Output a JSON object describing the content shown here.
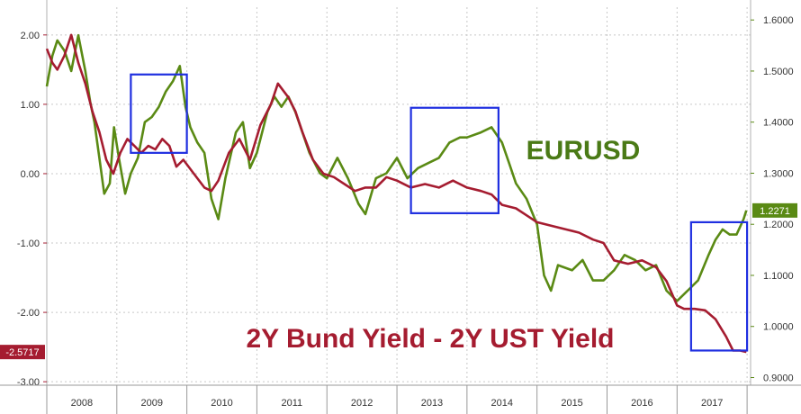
{
  "chart_data": {
    "type": "line",
    "x_years": [
      "2008",
      "2009",
      "2010",
      "2011",
      "2012",
      "2013",
      "2014",
      "2015",
      "2016",
      "2017"
    ],
    "left_axis": {
      "ticks": [
        "2.00",
        "1.00",
        "0.00",
        "-1.00",
        "-2.00",
        "-3.00"
      ],
      "tick_values": [
        2,
        1,
        0,
        -1,
        -2,
        -3
      ],
      "range": [
        -3.05,
        2.4
      ]
    },
    "right_axis": {
      "ticks": [
        "1.6000",
        "1.5000",
        "1.4000",
        "1.3000",
        "1.2000",
        "1.1000",
        "1.0000",
        "0.9000"
      ],
      "tick_values": [
        1.6,
        1.5,
        1.4,
        1.3,
        1.2,
        1.1,
        1.0,
        0.9
      ],
      "range": [
        0.885,
        1.625
      ]
    },
    "series": [
      {
        "name": "EURUSD",
        "axis": "right",
        "color": "#5a8a14",
        "last_value_label": "1.2271",
        "points": [
          [
            2008.0,
            1.47
          ],
          [
            2008.08,
            1.53
          ],
          [
            2008.15,
            1.56
          ],
          [
            2008.25,
            1.54
          ],
          [
            2008.35,
            1.5
          ],
          [
            2008.45,
            1.57
          ],
          [
            2008.55,
            1.5
          ],
          [
            2008.62,
            1.44
          ],
          [
            2008.68,
            1.4
          ],
          [
            2008.75,
            1.33
          ],
          [
            2008.82,
            1.26
          ],
          [
            2008.9,
            1.28
          ],
          [
            2008.96,
            1.39
          ],
          [
            2009.03,
            1.33
          ],
          [
            2009.12,
            1.26
          ],
          [
            2009.2,
            1.3
          ],
          [
            2009.3,
            1.33
          ],
          [
            2009.4,
            1.4
          ],
          [
            2009.5,
            1.41
          ],
          [
            2009.6,
            1.43
          ],
          [
            2009.7,
            1.46
          ],
          [
            2009.8,
            1.48
          ],
          [
            2009.9,
            1.51
          ],
          [
            2009.98,
            1.43
          ],
          [
            2010.05,
            1.39
          ],
          [
            2010.15,
            1.36
          ],
          [
            2010.25,
            1.34
          ],
          [
            2010.35,
            1.25
          ],
          [
            2010.45,
            1.21
          ],
          [
            2010.55,
            1.29
          ],
          [
            2010.7,
            1.38
          ],
          [
            2010.8,
            1.4
          ],
          [
            2010.9,
            1.31
          ],
          [
            2011.0,
            1.34
          ],
          [
            2011.15,
            1.42
          ],
          [
            2011.25,
            1.45
          ],
          [
            2011.35,
            1.43
          ],
          [
            2011.45,
            1.45
          ],
          [
            2011.55,
            1.42
          ],
          [
            2011.65,
            1.38
          ],
          [
            2011.75,
            1.34
          ],
          [
            2011.9,
            1.3
          ],
          [
            2012.0,
            1.29
          ],
          [
            2012.15,
            1.33
          ],
          [
            2012.3,
            1.29
          ],
          [
            2012.45,
            1.24
          ],
          [
            2012.55,
            1.22
          ],
          [
            2012.7,
            1.29
          ],
          [
            2012.85,
            1.3
          ],
          [
            2013.0,
            1.33
          ],
          [
            2013.15,
            1.29
          ],
          [
            2013.3,
            1.31
          ],
          [
            2013.45,
            1.32
          ],
          [
            2013.6,
            1.33
          ],
          [
            2013.75,
            1.36
          ],
          [
            2013.9,
            1.37
          ],
          [
            2014.0,
            1.37
          ],
          [
            2014.2,
            1.38
          ],
          [
            2014.35,
            1.39
          ],
          [
            2014.5,
            1.36
          ],
          [
            2014.6,
            1.32
          ],
          [
            2014.7,
            1.28
          ],
          [
            2014.85,
            1.25
          ],
          [
            2015.0,
            1.2
          ],
          [
            2015.1,
            1.1
          ],
          [
            2015.2,
            1.07
          ],
          [
            2015.3,
            1.12
          ],
          [
            2015.5,
            1.11
          ],
          [
            2015.65,
            1.13
          ],
          [
            2015.8,
            1.09
          ],
          [
            2015.95,
            1.09
          ],
          [
            2016.1,
            1.11
          ],
          [
            2016.25,
            1.14
          ],
          [
            2016.4,
            1.13
          ],
          [
            2016.55,
            1.11
          ],
          [
            2016.7,
            1.12
          ],
          [
            2016.85,
            1.07
          ],
          [
            2017.0,
            1.05
          ],
          [
            2017.15,
            1.07
          ],
          [
            2017.3,
            1.09
          ],
          [
            2017.45,
            1.14
          ],
          [
            2017.55,
            1.17
          ],
          [
            2017.65,
            1.19
          ],
          [
            2017.75,
            1.18
          ],
          [
            2017.85,
            1.18
          ],
          [
            2017.95,
            1.21
          ],
          [
            2017.99,
            1.2271
          ]
        ]
      },
      {
        "name": "2Y Bund Yield - 2Y UST Yield",
        "axis": "left",
        "color": "#a51c30",
        "last_value_label": "-2.5717",
        "points": [
          [
            2008.0,
            1.8
          ],
          [
            2008.08,
            1.6
          ],
          [
            2008.15,
            1.5
          ],
          [
            2008.25,
            1.7
          ],
          [
            2008.35,
            2.0
          ],
          [
            2008.45,
            1.6
          ],
          [
            2008.55,
            1.3
          ],
          [
            2008.65,
            0.9
          ],
          [
            2008.75,
            0.6
          ],
          [
            2008.85,
            0.2
          ],
          [
            2008.95,
            0.0
          ],
          [
            2009.05,
            0.3
          ],
          [
            2009.15,
            0.5
          ],
          [
            2009.25,
            0.4
          ],
          [
            2009.35,
            0.3
          ],
          [
            2009.45,
            0.4
          ],
          [
            2009.55,
            0.35
          ],
          [
            2009.65,
            0.5
          ],
          [
            2009.75,
            0.4
          ],
          [
            2009.85,
            0.1
          ],
          [
            2009.95,
            0.2
          ],
          [
            2010.1,
            0.0
          ],
          [
            2010.25,
            -0.2
          ],
          [
            2010.35,
            -0.25
          ],
          [
            2010.45,
            -0.1
          ],
          [
            2010.6,
            0.3
          ],
          [
            2010.75,
            0.5
          ],
          [
            2010.9,
            0.2
          ],
          [
            2011.05,
            0.7
          ],
          [
            2011.2,
            1.0
          ],
          [
            2011.3,
            1.3
          ],
          [
            2011.45,
            1.1
          ],
          [
            2011.55,
            0.9
          ],
          [
            2011.65,
            0.6
          ],
          [
            2011.8,
            0.2
          ],
          [
            2011.95,
            0.0
          ],
          [
            2012.1,
            -0.05
          ],
          [
            2012.25,
            -0.15
          ],
          [
            2012.4,
            -0.25
          ],
          [
            2012.55,
            -0.2
          ],
          [
            2012.7,
            -0.2
          ],
          [
            2012.85,
            -0.05
          ],
          [
            2013.0,
            -0.1
          ],
          [
            2013.2,
            -0.2
          ],
          [
            2013.4,
            -0.15
          ],
          [
            2013.6,
            -0.2
          ],
          [
            2013.8,
            -0.1
          ],
          [
            2014.0,
            -0.2
          ],
          [
            2014.2,
            -0.25
          ],
          [
            2014.35,
            -0.3
          ],
          [
            2014.5,
            -0.45
          ],
          [
            2014.7,
            -0.5
          ],
          [
            2014.85,
            -0.6
          ],
          [
            2015.0,
            -0.7
          ],
          [
            2015.2,
            -0.75
          ],
          [
            2015.4,
            -0.8
          ],
          [
            2015.6,
            -0.85
          ],
          [
            2015.8,
            -0.95
          ],
          [
            2015.95,
            -1.0
          ],
          [
            2016.1,
            -1.25
          ],
          [
            2016.3,
            -1.3
          ],
          [
            2016.5,
            -1.25
          ],
          [
            2016.7,
            -1.35
          ],
          [
            2016.85,
            -1.55
          ],
          [
            2017.0,
            -1.9
          ],
          [
            2017.1,
            -1.95
          ],
          [
            2017.25,
            -1.95
          ],
          [
            2017.4,
            -1.97
          ],
          [
            2017.55,
            -2.1
          ],
          [
            2017.7,
            -2.35
          ],
          [
            2017.8,
            -2.55
          ],
          [
            2017.9,
            -2.55
          ],
          [
            2017.99,
            -2.5717
          ]
        ]
      }
    ],
    "annotations": [
      "EURUSD",
      "2Y Bund Yield - 2Y UST Yield"
    ],
    "highlight_boxes": [
      {
        "x0": 2009.2,
        "x1": 2010.0,
        "y0": 1.43,
        "y1": 0.3
      },
      {
        "x0": 2013.2,
        "x1": 2014.45,
        "y0": 0.95,
        "y1": -0.57
      },
      {
        "x0": 2017.2,
        "x1": 2018.0,
        "y0": -0.7,
        "y1": -2.55
      }
    ],
    "grid": true
  }
}
